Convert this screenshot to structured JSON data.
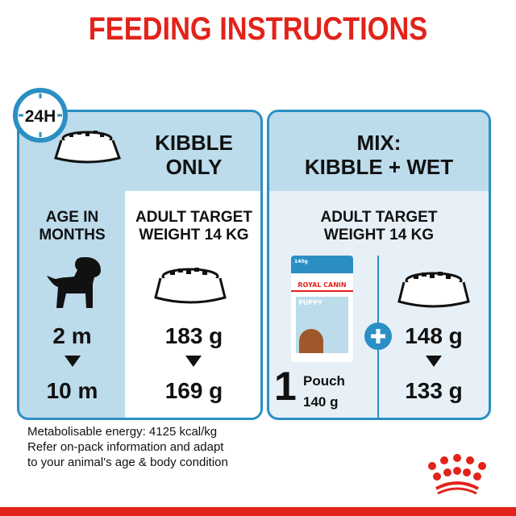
{
  "title": "FEEDING INSTRUCTIONS",
  "clock_label": "24H",
  "left": {
    "heading_line1": "KIBBLE",
    "heading_line2": "ONLY",
    "age_line1": "AGE IN",
    "age_line2": "MONTHS",
    "target_line1": "ADULT TARGET",
    "target_line2": "WEIGHT 14 KG",
    "age_start": "2 m",
    "age_end": "10 m",
    "grams_start": "183 g",
    "grams_end": "169 g"
  },
  "right": {
    "heading_line1": "MIX:",
    "heading_line2": "KIBBLE + WET",
    "target_line1": "ADULT TARGET",
    "target_line2": "WEIGHT 14 KG",
    "pouch_count": "1",
    "pouch_label": "Pouch",
    "pouch_weight": "140 g",
    "grams_start": "148 g",
    "grams_end": "133 g",
    "pouch_pack": {
      "weight": "140g",
      "brand": "ROYAL CANIN",
      "product": "PUPPY"
    }
  },
  "footer": {
    "line1": "Metabolisable energy: 4125 kcal/kg",
    "line2": "Refer on-pack information and adapt",
    "line3": "to your animal's age & body condition"
  },
  "colors": {
    "brand_red": "#e2231a",
    "accent_blue": "#2b8fc4",
    "panel_light": "#bcdbeb",
    "panel_pale": "#e7f0f6"
  }
}
